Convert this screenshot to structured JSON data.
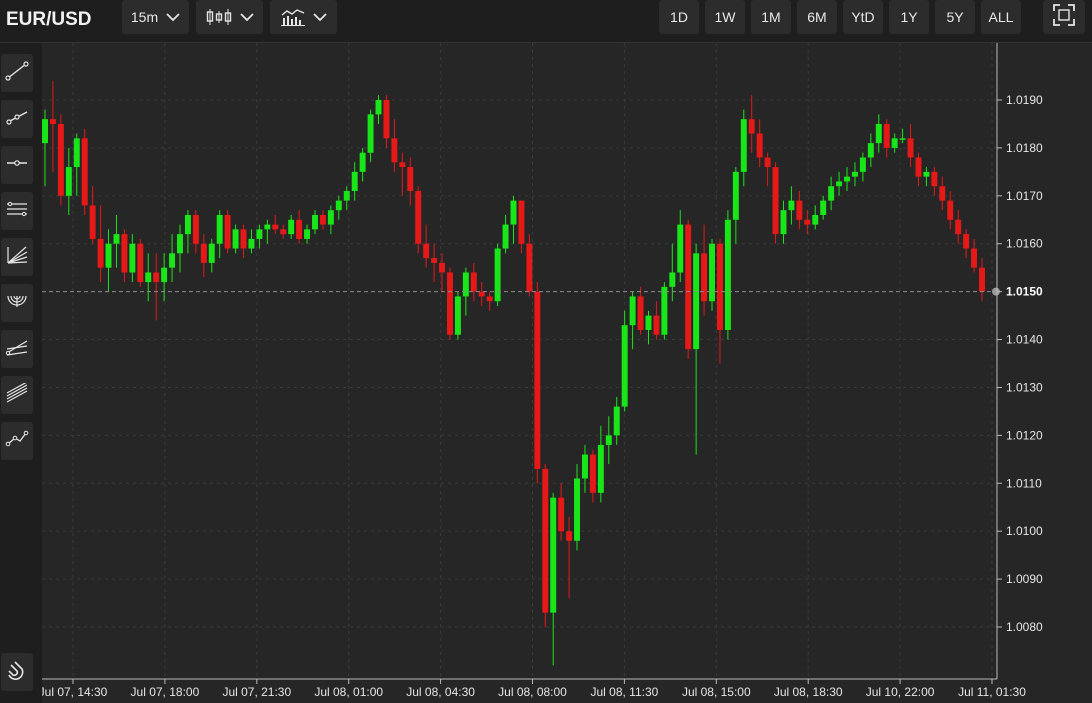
{
  "header": {
    "symbol": "EUR/USD",
    "interval": "15m",
    "chart_style_icon": "candlestick-icon",
    "indicators_icon": "indicators-icon",
    "ranges": [
      "1D",
      "1W",
      "1M",
      "6M",
      "YtD",
      "1Y",
      "5Y",
      "ALL"
    ],
    "fullscreen_icon": "fullscreen-icon"
  },
  "left_toolbar": {
    "tools": [
      "trend-line-icon",
      "ray-icon",
      "horizontal-line-icon",
      "parallel-channel-icon",
      "fib-fan-icon",
      "fib-arc-icon",
      "pitchfork-icon",
      "regression-channel-icon",
      "path-icon"
    ],
    "magnet_icon": "magnet-icon"
  },
  "colors": {
    "up": "#19e619",
    "down": "#e61919",
    "background": "#262626",
    "grid": "#3a3a3a",
    "price_line": "#8a8a8a"
  },
  "chart_data": {
    "type": "candlestick",
    "current_price": 1.015,
    "ylim": [
      1.007,
      1.02
    ],
    "yticks": [
      "1.0190",
      "1.0180",
      "1.0170",
      "1.0160",
      "1.0150",
      "1.0140",
      "1.0130",
      "1.0120",
      "1.0110",
      "1.0100",
      "1.0090",
      "1.0080"
    ],
    "xticks": [
      "Jul 07, 14:30",
      "Jul 07, 18:00",
      "Jul 07, 21:30",
      "Jul 08, 01:00",
      "Jul 08, 04:30",
      "Jul 08, 08:00",
      "Jul 08, 11:30",
      "Jul 08, 15:00",
      "Jul 08, 18:30",
      "Jul 10, 22:00",
      "Jul 11, 01:30"
    ],
    "grid": true,
    "candles": [
      [
        1.0181,
        1.0188,
        1.0172,
        1.0186
      ],
      [
        1.0186,
        1.0194,
        1.0175,
        1.0185
      ],
      [
        1.0185,
        1.0187,
        1.0168,
        1.017
      ],
      [
        1.017,
        1.018,
        1.0166,
        1.0176
      ],
      [
        1.0176,
        1.0183,
        1.017,
        1.0182
      ],
      [
        1.0182,
        1.0184,
        1.0166,
        1.0168
      ],
      [
        1.0168,
        1.0172,
        1.016,
        1.0161
      ],
      [
        1.0161,
        1.0168,
        1.0152,
        1.0155
      ],
      [
        1.0155,
        1.0163,
        1.015,
        1.016
      ],
      [
        1.016,
        1.0166,
        1.0155,
        1.0162
      ],
      [
        1.0162,
        1.0163,
        1.0152,
        1.0154
      ],
      [
        1.0154,
        1.0162,
        1.0152,
        1.016
      ],
      [
        1.016,
        1.0161,
        1.0151,
        1.0152
      ],
      [
        1.0152,
        1.0158,
        1.0148,
        1.0154
      ],
      [
        1.0154,
        1.0158,
        1.0144,
        1.0152
      ],
      [
        1.0152,
        1.0158,
        1.0148,
        1.0155
      ],
      [
        1.0155,
        1.0162,
        1.0152,
        1.0158
      ],
      [
        1.0158,
        1.0164,
        1.0154,
        1.0162
      ],
      [
        1.0162,
        1.0167,
        1.0158,
        1.0166
      ],
      [
        1.0166,
        1.0167,
        1.0158,
        1.016
      ],
      [
        1.016,
        1.0162,
        1.0153,
        1.0156
      ],
      [
        1.0156,
        1.0161,
        1.0154,
        1.016
      ],
      [
        1.016,
        1.0167,
        1.0157,
        1.0166
      ],
      [
        1.0166,
        1.0167,
        1.0158,
        1.0159
      ],
      [
        1.0159,
        1.0164,
        1.0158,
        1.0163
      ],
      [
        1.0163,
        1.0164,
        1.0157,
        1.0159
      ],
      [
        1.0159,
        1.0163,
        1.0158,
        1.0161
      ],
      [
        1.0161,
        1.0164,
        1.0159,
        1.0163
      ],
      [
        1.0163,
        1.0165,
        1.016,
        1.0164
      ],
      [
        1.0164,
        1.0166,
        1.0162,
        1.0163
      ],
      [
        1.0163,
        1.0164,
        1.0161,
        1.0162
      ],
      [
        1.0162,
        1.0166,
        1.0161,
        1.0165
      ],
      [
        1.0165,
        1.0167,
        1.016,
        1.0161
      ],
      [
        1.0161,
        1.0164,
        1.016,
        1.0163
      ],
      [
        1.0163,
        1.0167,
        1.0162,
        1.0166
      ],
      [
        1.0166,
        1.0167,
        1.0163,
        1.0164
      ],
      [
        1.0164,
        1.0168,
        1.0162,
        1.0167
      ],
      [
        1.0167,
        1.017,
        1.0165,
        1.0169
      ],
      [
        1.0169,
        1.0172,
        1.0167,
        1.0171
      ],
      [
        1.0171,
        1.0177,
        1.0169,
        1.0175
      ],
      [
        1.0175,
        1.018,
        1.0173,
        1.0179
      ],
      [
        1.0179,
        1.0188,
        1.0177,
        1.0187
      ],
      [
        1.0187,
        1.0191,
        1.0185,
        1.019
      ],
      [
        1.019,
        1.0191,
        1.018,
        1.0182
      ],
      [
        1.0182,
        1.0186,
        1.0175,
        1.0177
      ],
      [
        1.0177,
        1.0179,
        1.017,
        1.0176
      ],
      [
        1.0176,
        1.0178,
        1.0168,
        1.0171
      ],
      [
        1.0171,
        1.0172,
        1.0158,
        1.016
      ],
      [
        1.016,
        1.0164,
        1.0155,
        1.0157
      ],
      [
        1.0157,
        1.016,
        1.0152,
        1.0156
      ],
      [
        1.0156,
        1.0158,
        1.015,
        1.0154
      ],
      [
        1.0154,
        1.0155,
        1.014,
        1.0141
      ],
      [
        1.0141,
        1.015,
        1.014,
        1.0149
      ],
      [
        1.0149,
        1.0155,
        1.0145,
        1.0154
      ],
      [
        1.0154,
        1.0156,
        1.0148,
        1.015
      ],
      [
        1.015,
        1.0152,
        1.0147,
        1.0149
      ],
      [
        1.0149,
        1.015,
        1.0146,
        1.0148
      ],
      [
        1.0148,
        1.016,
        1.0147,
        1.0159
      ],
      [
        1.0159,
        1.0166,
        1.0158,
        1.0164
      ],
      [
        1.0164,
        1.017,
        1.016,
        1.0169
      ],
      [
        1.0169,
        1.0169,
        1.0158,
        1.016
      ],
      [
        1.016,
        1.0162,
        1.0149,
        1.015
      ],
      [
        1.015,
        1.0152,
        1.011,
        1.0113
      ],
      [
        1.0113,
        1.0114,
        1.008,
        1.0083
      ],
      [
        1.0083,
        1.0108,
        1.0072,
        1.0107
      ],
      [
        1.0107,
        1.011,
        1.0098,
        1.01
      ],
      [
        1.01,
        1.0103,
        1.0086,
        1.0098
      ],
      [
        1.0098,
        1.0114,
        1.0096,
        1.0111
      ],
      [
        1.0111,
        1.0118,
        1.0108,
        1.0116
      ],
      [
        1.0116,
        1.0117,
        1.0106,
        1.0108
      ],
      [
        1.0108,
        1.0122,
        1.0106,
        1.0118
      ],
      [
        1.0118,
        1.0124,
        1.0114,
        1.012
      ],
      [
        1.012,
        1.0128,
        1.0118,
        1.0126
      ],
      [
        1.0126,
        1.0146,
        1.0125,
        1.0143
      ],
      [
        1.0143,
        1.015,
        1.0138,
        1.0149
      ],
      [
        1.0149,
        1.0151,
        1.0141,
        1.0142
      ],
      [
        1.0142,
        1.0146,
        1.0139,
        1.0145
      ],
      [
        1.0145,
        1.0148,
        1.014,
        1.0141
      ],
      [
        1.0141,
        1.0152,
        1.014,
        1.0151
      ],
      [
        1.0151,
        1.016,
        1.0148,
        1.0154
      ],
      [
        1.0154,
        1.0167,
        1.0152,
        1.0164
      ],
      [
        1.0164,
        1.0165,
        1.0136,
        1.0138
      ],
      [
        1.0138,
        1.016,
        1.0116,
        1.0158
      ],
      [
        1.0158,
        1.0164,
        1.0145,
        1.0148
      ],
      [
        1.0148,
        1.0161,
        1.0146,
        1.016
      ],
      [
        1.016,
        1.0161,
        1.0135,
        1.0142
      ],
      [
        1.0142,
        1.0167,
        1.014,
        1.0165
      ],
      [
        1.0165,
        1.0176,
        1.016,
        1.0175
      ],
      [
        1.0175,
        1.0188,
        1.0172,
        1.0186
      ],
      [
        1.0186,
        1.0191,
        1.0179,
        1.0183
      ],
      [
        1.0183,
        1.0186,
        1.0176,
        1.0178
      ],
      [
        1.0178,
        1.0179,
        1.0172,
        1.0176
      ],
      [
        1.0176,
        1.0177,
        1.016,
        1.0162
      ],
      [
        1.0162,
        1.0169,
        1.016,
        1.0167
      ],
      [
        1.0167,
        1.0172,
        1.0164,
        1.0169
      ],
      [
        1.0169,
        1.0171,
        1.0163,
        1.0165
      ],
      [
        1.0165,
        1.0167,
        1.0162,
        1.0164
      ],
      [
        1.0164,
        1.0168,
        1.0163,
        1.0166
      ],
      [
        1.0166,
        1.017,
        1.0165,
        1.0169
      ],
      [
        1.0169,
        1.0174,
        1.0167,
        1.0172
      ],
      [
        1.0172,
        1.0175,
        1.017,
        1.0173
      ],
      [
        1.0173,
        1.0176,
        1.0171,
        1.0174
      ],
      [
        1.0174,
        1.0177,
        1.0172,
        1.0175
      ],
      [
        1.0175,
        1.0179,
        1.0173,
        1.0178
      ],
      [
        1.0178,
        1.0183,
        1.0176,
        1.0181
      ],
      [
        1.0181,
        1.0187,
        1.0179,
        1.0185
      ],
      [
        1.0185,
        1.0186,
        1.0178,
        1.018
      ],
      [
        1.018,
        1.0183,
        1.0179,
        1.0182
      ],
      [
        1.0182,
        1.0184,
        1.0181,
        1.0182
      ],
      [
        1.0182,
        1.0185,
        1.0176,
        1.0178
      ],
      [
        1.0178,
        1.0179,
        1.0172,
        1.0174
      ],
      [
        1.0174,
        1.0176,
        1.0172,
        1.0175
      ],
      [
        1.0175,
        1.0176,
        1.017,
        1.0172
      ],
      [
        1.0172,
        1.0174,
        1.0167,
        1.0169
      ],
      [
        1.0169,
        1.0171,
        1.0163,
        1.0165
      ],
      [
        1.0165,
        1.0167,
        1.016,
        1.0162
      ],
      [
        1.0162,
        1.0163,
        1.0157,
        1.0159
      ],
      [
        1.0159,
        1.0161,
        1.0154,
        1.0155
      ],
      [
        1.0155,
        1.0157,
        1.0148,
        1.015
      ]
    ]
  }
}
